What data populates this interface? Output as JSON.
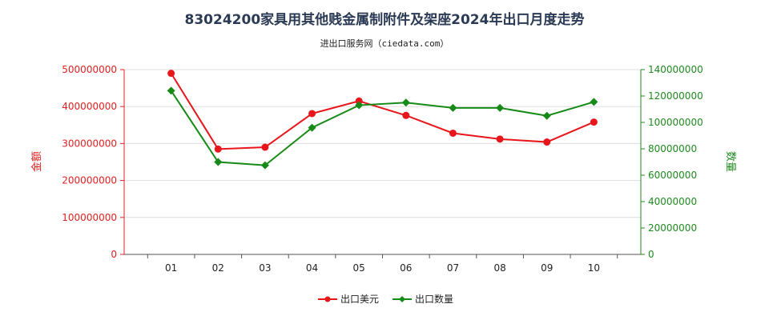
{
  "chart_data": {
    "type": "line",
    "title": "83024200家具用其他贱金属制附件及架座2024年出口月度走势",
    "subtitle": "进出口服务网（ciedata.com）",
    "categories": [
      "01",
      "02",
      "03",
      "04",
      "05",
      "06",
      "07",
      "08",
      "09",
      "10"
    ],
    "series": [
      {
        "name": "出口美元",
        "axis": "left",
        "color": "#e8161b",
        "values": [
          490000000,
          285000000,
          290000000,
          381000000,
          415000000,
          376000000,
          328000000,
          312000000,
          304000000,
          358000000
        ]
      },
      {
        "name": "出口数量",
        "axis": "right",
        "color": "#168a16",
        "values": [
          124000000,
          70000000,
          67500000,
          96000000,
          113000000,
          115000000,
          111000000,
          111000000,
          105000000,
          115500000
        ]
      }
    ],
    "ylabel_left": "金额",
    "ylabel_right": "数量",
    "ylim_left": [
      0,
      500000000
    ],
    "ylim_right": [
      0,
      140000000
    ],
    "yticks_left": [
      "0",
      "100000000",
      "200000000",
      "300000000",
      "400000000",
      "500000000"
    ],
    "yticks_right": [
      "0",
      "20000000",
      "40000000",
      "60000000",
      "80000000",
      "100000000",
      "120000000",
      "140000000"
    ],
    "legend_position": "bottom",
    "grid": "horizontal"
  }
}
